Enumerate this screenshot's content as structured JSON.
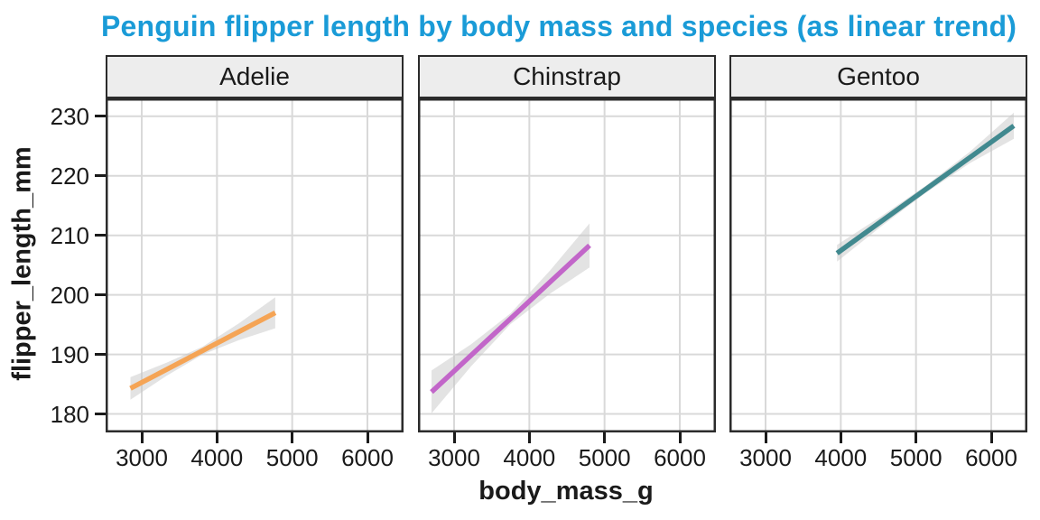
{
  "chart_data": {
    "type": "line",
    "title": "Penguin flipper length by body mass and species (as linear trend)",
    "xlabel": "body_mass_g",
    "ylabel": "flipper_length_mm",
    "x_ticks": [
      3000,
      4000,
      5000,
      6000
    ],
    "y_ticks": [
      180,
      190,
      200,
      210,
      220,
      230
    ],
    "xlim": [
      2520,
      6480
    ],
    "ylim": [
      176.9,
      233.0
    ],
    "grid": "major-only",
    "legend": "none",
    "facets": [
      {
        "label": "Adelie",
        "color": "#f5a455",
        "trend": {
          "x": [
            2850,
            4775
          ],
          "y": [
            184.3,
            197.0
          ]
        },
        "band": {
          "x": [
            2850,
            3330,
            3810,
            4290,
            4775
          ],
          "upper": [
            186.2,
            188.6,
            191.3,
            195.2,
            199.6
          ],
          "lower": [
            182.4,
            186.4,
            190.0,
            192.4,
            194.4
          ]
        }
      },
      {
        "label": "Chinstrap",
        "color": "#c266c9",
        "trend": {
          "x": [
            2700,
            4800
          ],
          "y": [
            183.7,
            208.3
          ]
        },
        "band": {
          "x": [
            2700,
            3225,
            3750,
            4275,
            4800
          ],
          "upper": [
            187.3,
            191.7,
            196.9,
            204.1,
            212.0
          ],
          "lower": [
            180.1,
            188.0,
            195.1,
            200.2,
            204.6
          ]
        }
      },
      {
        "label": "Gentoo",
        "color": "#41898f",
        "trend": {
          "x": [
            3950,
            6300
          ],
          "y": [
            207.0,
            228.4
          ]
        },
        "band": {
          "x": [
            3950,
            4537,
            5125,
            5712,
            6300
          ],
          "upper": [
            208.4,
            213.2,
            218.3,
            224.0,
            230.6
          ],
          "lower": [
            205.6,
            211.5,
            217.1,
            222.1,
            226.2
          ]
        }
      }
    ]
  },
  "colors": {
    "title": "#1a9bd7",
    "strip_bg": "#ededed",
    "border": "#2b2b2b",
    "grid": "#d9d9d9",
    "ribbon": "#c8c8c8",
    "text": "#1a1a1a"
  }
}
